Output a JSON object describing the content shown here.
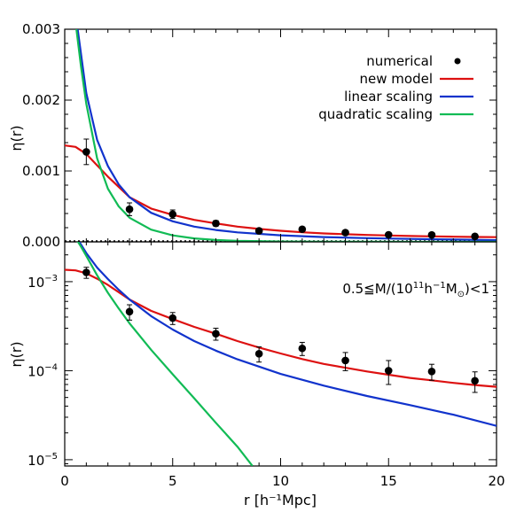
{
  "chart_data": [
    {
      "type": "line",
      "panel": "top",
      "ylabel": "η(r)",
      "ylim": [
        0,
        0.003
      ],
      "yscale": "linear",
      "xlim": [
        0,
        20
      ],
      "y_ticks": [
        "0.000",
        "0.001",
        "0.002",
        "0.003"
      ],
      "zero_line": "dotted",
      "legend": {
        "placement": "top-right",
        "entries": [
          {
            "label": "numerical",
            "marker": "dot",
            "color": "#000000"
          },
          {
            "label": "new model",
            "color": "#dd1111"
          },
          {
            "label": "linear scaling",
            "color": "#1133cc"
          },
          {
            "label": "quadratic scaling",
            "color": "#11bb55"
          }
        ]
      },
      "points": [
        {
          "x": 1,
          "y": 0.00127,
          "err": 0.00018
        },
        {
          "x": 3,
          "y": 0.00046,
          "err": 9e-05
        },
        {
          "x": 5,
          "y": 0.00039,
          "err": 6e-05
        },
        {
          "x": 7,
          "y": 0.00026,
          "err": 4e-05
        },
        {
          "x": 9,
          "y": 0.000155,
          "err": 3e-05
        },
        {
          "x": 11,
          "y": 0.000178,
          "err": 3e-05
        },
        {
          "x": 13,
          "y": 0.00013,
          "err": 3e-05
        },
        {
          "x": 15,
          "y": 0.0001,
          "err": 3e-05
        },
        {
          "x": 17,
          "y": 9.8e-05,
          "err": 2e-05
        },
        {
          "x": 19,
          "y": 7.7e-05,
          "err": 2e-05
        }
      ],
      "series": [
        {
          "name": "new model",
          "x": [
            0,
            0.5,
            1,
            1.5,
            2,
            3,
            4,
            5,
            6,
            7,
            8,
            9,
            10,
            11,
            12,
            13,
            14,
            15,
            16,
            17,
            18,
            19,
            20
          ],
          "y": [
            0.00136,
            0.00134,
            0.00124,
            0.00108,
            0.00092,
            0.00063,
            0.00047,
            0.00038,
            0.00031,
            0.00026,
            0.000215,
            0.000182,
            0.000156,
            0.000135,
            0.000119,
            0.000108,
            9.8e-05,
            9e-05,
            8.3e-05,
            7.8e-05,
            7.3e-05,
            6.9e-05,
            6.6e-05
          ]
        },
        {
          "name": "linear scaling",
          "x": [
            0.6,
            1,
            1.5,
            2,
            2.5,
            3,
            4,
            5,
            6,
            7,
            8,
            10,
            12,
            14,
            16,
            18,
            20
          ],
          "y": [
            0.003,
            0.0021,
            0.00144,
            0.00107,
            0.00081,
            0.00063,
            0.00041,
            0.00029,
            0.000215,
            0.000168,
            0.000134,
            9.2e-05,
            6.8e-05,
            5.2e-05,
            4.1e-05,
            3.2e-05,
            2.4e-05
          ]
        },
        {
          "name": "quadratic scaling",
          "x": [
            0.25,
            0.5,
            0.75,
            1,
            1.5,
            2,
            2.5,
            3,
            4,
            5,
            6,
            7,
            8,
            10,
            12,
            14,
            16,
            18,
            20
          ],
          "y": [
            0.0031,
            0.0031,
            0.00248,
            0.00195,
            0.00118,
            0.00075,
            0.0005,
            0.00034,
            0.000172,
            9.1e-05,
            4.9e-05,
            2.6e-05,
            1.4e-05,
            5e-06,
            2e-06,
            1e-06,
            5e-07,
            2e-07,
            1e-07
          ]
        }
      ]
    },
    {
      "type": "line",
      "panel": "bottom",
      "ylabel": "η(r)",
      "yscale": "log",
      "ylim": [
        8.5e-06,
        0.0028
      ],
      "xlim": [
        0,
        20
      ],
      "xlabel": "r  [h⁻¹Mpc]",
      "x_ticks": [
        "0",
        "5",
        "10",
        "15",
        "20"
      ],
      "y_ticks": [
        {
          "value": 0.001,
          "base": "10",
          "exp": "−3"
        },
        {
          "value": 0.0001,
          "base": "10",
          "exp": "−4"
        },
        {
          "value": 1e-05,
          "base": "10",
          "exp": "−5"
        }
      ],
      "annotation": {
        "prefix": "0.5≦M/(10",
        "exp1": "11",
        "mid": "h",
        "exp2": "−1",
        "m": "M",
        "sub": "⊙",
        "suffix": ")<1"
      },
      "points": [
        {
          "x": 1,
          "y": 0.00127,
          "err": 0.00018
        },
        {
          "x": 3,
          "y": 0.00046,
          "err": 9e-05
        },
        {
          "x": 5,
          "y": 0.00039,
          "err": 6e-05
        },
        {
          "x": 7,
          "y": 0.00026,
          "err": 4e-05
        },
        {
          "x": 9,
          "y": 0.000155,
          "err": 3e-05
        },
        {
          "x": 11,
          "y": 0.000178,
          "err": 3e-05
        },
        {
          "x": 13,
          "y": 0.00013,
          "err": 3e-05
        },
        {
          "x": 15,
          "y": 0.0001,
          "err": 3e-05
        },
        {
          "x": 17,
          "y": 9.8e-05,
          "err": 2e-05
        },
        {
          "x": 19,
          "y": 7.7e-05,
          "err": 2e-05
        }
      ],
      "series": [
        {
          "name": "new model",
          "x": [
            0,
            0.5,
            1,
            1.5,
            2,
            3,
            4,
            5,
            6,
            7,
            8,
            9,
            10,
            11,
            12,
            13,
            14,
            15,
            16,
            17,
            18,
            19,
            20
          ],
          "y": [
            0.00136,
            0.00134,
            0.00124,
            0.00108,
            0.00092,
            0.00063,
            0.00047,
            0.00038,
            0.00031,
            0.00026,
            0.000215,
            0.000182,
            0.000156,
            0.000135,
            0.000119,
            0.000108,
            9.8e-05,
            9e-05,
            8.3e-05,
            7.8e-05,
            7.3e-05,
            6.9e-05,
            6.6e-05
          ]
        },
        {
          "name": "linear scaling",
          "x": [
            0.6,
            1,
            1.5,
            2,
            2.5,
            3,
            4,
            5,
            6,
            7,
            8,
            10,
            12,
            14,
            16,
            18,
            20
          ],
          "y": [
            0.003,
            0.0021,
            0.00144,
            0.00107,
            0.00081,
            0.00063,
            0.00041,
            0.00029,
            0.000215,
            0.000168,
            0.000134,
            9.2e-05,
            6.8e-05,
            5.2e-05,
            4.1e-05,
            3.2e-05,
            2.4e-05
          ]
        },
        {
          "name": "quadratic scaling",
          "x": [
            0.25,
            0.5,
            0.75,
            1,
            1.5,
            2,
            2.5,
            3,
            4,
            5,
            6,
            7,
            8,
            8.7
          ],
          "y": [
            0.0031,
            0.0031,
            0.00248,
            0.00195,
            0.00118,
            0.00075,
            0.0005,
            0.00034,
            0.000172,
            9.1e-05,
            4.9e-05,
            2.6e-05,
            1.4e-05,
            8.5e-06
          ]
        }
      ]
    }
  ]
}
